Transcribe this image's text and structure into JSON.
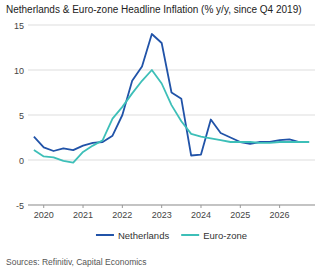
{
  "chart_data": {
    "type": "line",
    "title": "Netherlands & Euro-zone Headline Inflation (% y/y, since Q4 2019)",
    "source": "Sources: Refinitiv, Capital Economics",
    "x": [
      2019.75,
      2020.0,
      2020.25,
      2020.5,
      2020.75,
      2021.0,
      2021.25,
      2021.5,
      2021.75,
      2022.0,
      2022.25,
      2022.5,
      2022.75,
      2023.0,
      2023.25,
      2023.5,
      2023.75,
      2024.0,
      2024.25,
      2024.5,
      2024.75,
      2025.0,
      2025.25,
      2025.5,
      2025.75,
      2026.0,
      2026.25,
      2026.5,
      2026.75
    ],
    "series": [
      {
        "name": "Netherlands",
        "color": "#2153a8",
        "values": [
          2.6,
          1.4,
          1.0,
          1.3,
          1.1,
          1.6,
          1.9,
          2.0,
          2.7,
          5.0,
          8.8,
          10.4,
          14.0,
          13.0,
          7.5,
          6.8,
          0.5,
          0.6,
          4.5,
          3.0,
          2.5,
          2.0,
          1.8,
          2.0,
          2.0,
          2.2,
          2.3,
          2.0,
          2.0
        ]
      },
      {
        "name": "Euro-zone",
        "color": "#3dbfb8",
        "values": [
          1.1,
          0.4,
          0.3,
          -0.1,
          -0.3,
          0.9,
          1.6,
          2.2,
          4.6,
          5.9,
          7.4,
          8.8,
          10.0,
          8.5,
          6.1,
          4.3,
          2.9,
          2.6,
          2.4,
          2.2,
          2.0,
          2.0,
          2.0,
          1.9,
          1.9,
          2.0,
          2.0,
          2.0,
          2.0
        ]
      }
    ],
    "xlim": [
      2019.6,
      2026.9
    ],
    "xticks": [
      2020,
      2021,
      2022,
      2023,
      2024,
      2025,
      2026
    ],
    "ylim": [
      -5,
      15
    ],
    "yticks": [
      -5,
      0,
      5,
      10,
      15
    ],
    "grid": "y",
    "legend": "bottom"
  }
}
